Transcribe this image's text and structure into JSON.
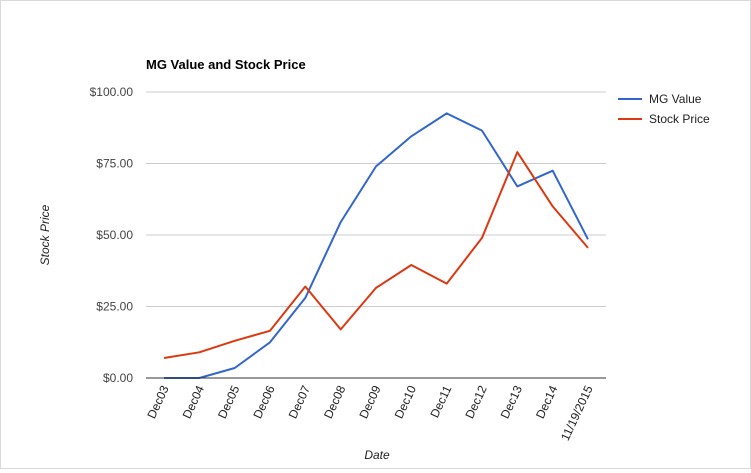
{
  "chart_data": {
    "type": "line",
    "title": "MG Value and Stock Price",
    "xlabel": "Date",
    "ylabel": "Stock Price",
    "categories": [
      "Dec03",
      "Dec04",
      "Dec05",
      "Dec06",
      "Dec07",
      "Dec08",
      "Dec09",
      "Dec10",
      "Dec11",
      "Dec12",
      "Dec13",
      "Dec14",
      "11/19/2015"
    ],
    "ylim": [
      0,
      100
    ],
    "yticks": [
      0,
      25,
      50,
      75,
      100
    ],
    "ytick_labels": [
      "$0.00",
      "$25.00",
      "$50.00",
      "$75.00",
      "$100.00"
    ],
    "grid": true,
    "legend_position": "right",
    "series": [
      {
        "name": "MG Value",
        "color": "#3366cc",
        "values": [
          0,
          0,
          3.5,
          12.5,
          28,
          54.5,
          74,
          84.5,
          92.5,
          86.5,
          67,
          72.5,
          48.5
        ]
      },
      {
        "name": "Stock Price",
        "color": "#dc3912",
        "values": [
          7,
          9,
          13,
          16.5,
          32,
          17,
          31.5,
          39.5,
          33,
          49,
          79,
          60,
          45.5
        ]
      }
    ]
  }
}
